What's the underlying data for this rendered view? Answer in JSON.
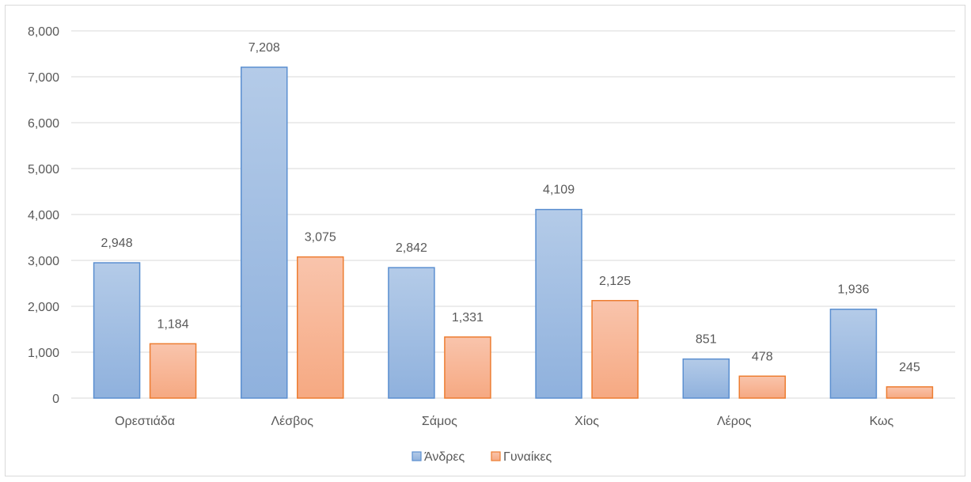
{
  "chart_data": {
    "type": "bar",
    "categories": [
      "Ορεστιάδα",
      "Λέσβος",
      "Σάμος",
      "Χίος",
      "Λέρος",
      "Κως"
    ],
    "series": [
      {
        "name": "Άνδρες",
        "values": [
          2948,
          7208,
          2842,
          4109,
          851,
          1936
        ],
        "labels": [
          "2,948",
          "7,208",
          "2,842",
          "4,109",
          "851",
          "1,936"
        ],
        "fill_top": "#b4cbe8",
        "fill_bottom": "#8fb1dd",
        "stroke": "#5b8fd0"
      },
      {
        "name": "Γυναίκες",
        "values": [
          1184,
          3075,
          1331,
          2125,
          478,
          245
        ],
        "labels": [
          "1,184",
          "3,075",
          "1,331",
          "2,125",
          "478",
          "245"
        ],
        "fill_top": "#f9c4ac",
        "fill_bottom": "#f6a982",
        "stroke": "#ed7d31"
      }
    ],
    "yticks": [
      0,
      1000,
      2000,
      3000,
      4000,
      5000,
      6000,
      7000,
      8000
    ],
    "ytick_labels": [
      "0",
      "1,000",
      "2,000",
      "3,000",
      "4,000",
      "5,000",
      "6,000",
      "7,000",
      "8,000"
    ],
    "ylim": [
      0,
      8000
    ],
    "grid": true,
    "legend_position": "bottom"
  }
}
